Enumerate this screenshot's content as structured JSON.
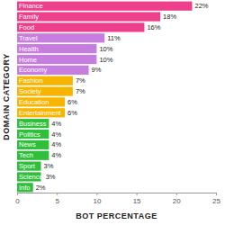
{
  "chart_data": {
    "type": "bar",
    "orientation": "horizontal",
    "xlabel": "BOT PERCENTAGE",
    "ylabel": "DOMAIN CATEGORY",
    "categories": [
      "Finance",
      "Family",
      "Food",
      "Travel",
      "Health",
      "Home",
      "Economy",
      "Fashion",
      "Society",
      "Education",
      "Entertainment",
      "Business",
      "Politics",
      "News",
      "Tech",
      "Sport",
      "Science",
      "Info"
    ],
    "values": [
      22,
      18,
      16,
      11,
      10,
      10,
      9,
      7,
      7,
      6,
      6,
      4,
      4,
      4,
      4,
      3,
      3,
      2
    ],
    "value_labels": [
      "22%",
      "18%",
      "16%",
      "11%",
      "10%",
      "10%",
      "9%",
      "7%",
      "7%",
      "6%",
      "6%",
      "4%",
      "4%",
      "4%",
      "4%",
      "3%",
      "3%",
      "2%"
    ],
    "colors": [
      "#ee3f8c",
      "#ee3f8c",
      "#ee3f8c",
      "#c77ddf",
      "#c77ddf",
      "#c77ddf",
      "#c77ddf",
      "#f7b500",
      "#f7b500",
      "#f7b500",
      "#f7b500",
      "#2fbf3a",
      "#2fbf3a",
      "#2fbf3a",
      "#2fbf3a",
      "#2fbf3a",
      "#2fbf3a",
      "#2fbf3a"
    ],
    "xlim": [
      0,
      25
    ],
    "xticks": [
      0,
      5,
      10,
      15,
      20,
      25
    ],
    "data_labels": true,
    "tick_labels": "x",
    "grid": false
  }
}
